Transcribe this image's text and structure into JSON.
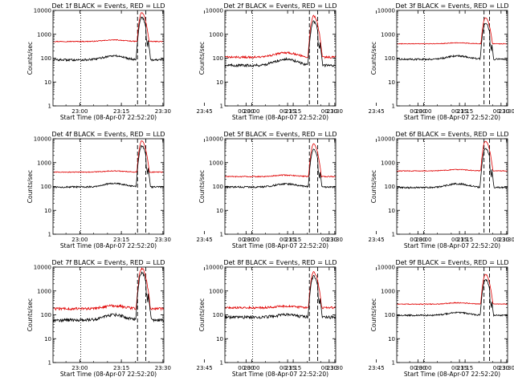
{
  "chart_data": [
    {
      "type": "line",
      "title": "Det 1f  BLACK = Events, RED = LLD",
      "xlabel": "Start Time (08-Apr-07 22:52:20)",
      "ylabel": "Counts/sec",
      "x_ticks": [
        "23:00",
        "23:15",
        "23:30",
        "23:45",
        "00:00",
        "00:15",
        "00:30"
      ],
      "x_range_min": [
        -2,
        38
      ],
      "y_log": true,
      "ylim": [
        1,
        10000
      ],
      "y_ticks": [
        "1",
        "10",
        "100",
        "1000",
        "10000"
      ],
      "dotted_line_min": 8,
      "dashed_lines_min": [
        28.5,
        31.5
      ],
      "series": [
        {
          "color": "#e00000",
          "baseline": 500,
          "hump": 80,
          "peak": 8000,
          "noise": 0.04
        },
        {
          "color": "#000000",
          "baseline": 85,
          "hump": 40,
          "peak": 5000,
          "noise": 0.1
        }
      ]
    },
    {
      "type": "line",
      "title": "Det 2f  BLACK = Events, RED = LLD",
      "xlabel": "Start Time (08-Apr-07 22:52:20)",
      "ylabel": "Counts/sec",
      "x_ticks": [
        "23:00",
        "23:15",
        "23:30",
        "23:45",
        "00:00",
        "00:15",
        "00:30"
      ],
      "x_range_min": [
        -2,
        38
      ],
      "y_log": true,
      "ylim": [
        1,
        10000
      ],
      "y_ticks": [
        "1",
        "10",
        "100",
        "1000",
        "10000"
      ],
      "dotted_line_min": 8,
      "dashed_lines_min": [
        28.5,
        31.5
      ],
      "series": [
        {
          "color": "#e00000",
          "baseline": 110,
          "hump": 60,
          "peak": 6000,
          "noise": 0.1
        },
        {
          "color": "#000000",
          "baseline": 50,
          "hump": 40,
          "peak": 3500,
          "noise": 0.12
        }
      ]
    },
    {
      "type": "line",
      "title": "Det 3f  BLACK = Events, RED = LLD",
      "xlabel": "Start Time (08-Apr-07 22:52:20)",
      "ylabel": "Counts/sec",
      "x_ticks": [
        "23:00",
        "23:15",
        "23:30",
        "23:45",
        "00:00",
        "00:15",
        "00:30"
      ],
      "x_range_min": [
        -2,
        38
      ],
      "y_log": true,
      "ylim": [
        1,
        10000
      ],
      "y_ticks": [
        "1",
        "10",
        "100",
        "1000",
        "10000"
      ],
      "dotted_line_min": 8,
      "dashed_lines_min": [
        29.5,
        31.5
      ],
      "series": [
        {
          "color": "#e00000",
          "baseline": 400,
          "hump": 40,
          "peak": 5000,
          "noise": 0.03
        },
        {
          "color": "#000000",
          "baseline": 90,
          "hump": 35,
          "peak": 3000,
          "noise": 0.08
        }
      ]
    },
    {
      "type": "line",
      "title": "Det 4f  BLACK = Events, RED = LLD",
      "xlabel": "Start Time (08-Apr-07 22:52:20)",
      "ylabel": "Counts/sec",
      "x_ticks": [
        "23:00",
        "23:15",
        "23:30",
        "23:45",
        "00:00",
        "00:15",
        "00:30"
      ],
      "x_range_min": [
        -2,
        38
      ],
      "y_log": true,
      "ylim": [
        1,
        10000
      ],
      "y_ticks": [
        "1",
        "10",
        "100",
        "1000",
        "10000"
      ],
      "dotted_line_min": 8,
      "dashed_lines_min": [
        28.5,
        31.5
      ],
      "series": [
        {
          "color": "#e00000",
          "baseline": 400,
          "hump": 50,
          "peak": 8000,
          "noise": 0.04
        },
        {
          "color": "#000000",
          "baseline": 95,
          "hump": 40,
          "peak": 5000,
          "noise": 0.08
        }
      ]
    },
    {
      "type": "line",
      "title": "Det 5f  BLACK = Events, RED = LLD",
      "xlabel": "Start Time (08-Apr-07 22:52:20)",
      "ylabel": "Counts/sec",
      "x_ticks": [
        "23:00",
        "23:15",
        "23:30",
        "23:45",
        "00:00",
        "00:15",
        "00:30"
      ],
      "x_range_min": [
        -2,
        38
      ],
      "y_log": true,
      "ylim": [
        1,
        10000
      ],
      "y_ticks": [
        "1",
        "10",
        "100",
        "1000",
        "10000"
      ],
      "dotted_line_min": 8,
      "dashed_lines_min": [
        28.5,
        31.5
      ],
      "series": [
        {
          "color": "#e00000",
          "baseline": 260,
          "hump": 40,
          "peak": 6000,
          "noise": 0.05
        },
        {
          "color": "#000000",
          "baseline": 95,
          "hump": 35,
          "peak": 3500,
          "noise": 0.08
        }
      ]
    },
    {
      "type": "line",
      "title": "Det 6f  BLACK = Events, RED = LLD",
      "xlabel": "Start Time (08-Apr-07 22:52:20)",
      "ylabel": "Counts/sec",
      "x_ticks": [
        "23:00",
        "23:15",
        "23:30",
        "23:45",
        "00:00",
        "00:15",
        "00:30"
      ],
      "x_range_min": [
        -2,
        38
      ],
      "y_log": true,
      "ylim": [
        1,
        10000
      ],
      "y_ticks": [
        "1",
        "10",
        "100",
        "1000",
        "10000"
      ],
      "dotted_line_min": 8,
      "dashed_lines_min": [
        29.5,
        31.5
      ],
      "series": [
        {
          "color": "#e00000",
          "baseline": 450,
          "hump": 60,
          "peak": 8000,
          "noise": 0.04
        },
        {
          "color": "#000000",
          "baseline": 90,
          "hump": 40,
          "peak": 4000,
          "noise": 0.08
        }
      ]
    },
    {
      "type": "line",
      "title": "Det 7f  BLACK = Events, RED = LLD",
      "xlabel": "Start Time (08-Apr-07 22:52:20)",
      "ylabel": "Counts/sec",
      "x_ticks": [
        "23:00",
        "23:15",
        "23:30",
        "23:45",
        "00:00",
        "00:15",
        "00:30"
      ],
      "x_range_min": [
        -2,
        38
      ],
      "y_log": true,
      "ylim": [
        1,
        10000
      ],
      "y_ticks": [
        "1",
        "10",
        "100",
        "1000",
        "10000"
      ],
      "dotted_line_min": 8,
      "dashed_lines_min": [
        28.5,
        31.5
      ],
      "series": [
        {
          "color": "#e00000",
          "baseline": 180,
          "hump": 60,
          "peak": 9000,
          "noise": 0.12
        },
        {
          "color": "#000000",
          "baseline": 60,
          "hump": 40,
          "peak": 6000,
          "noise": 0.14
        }
      ]
    },
    {
      "type": "line",
      "title": "Det 8f  BLACK = Events, RED = LLD",
      "xlabel": "Start Time (08-Apr-07 22:52:20)",
      "ylabel": "Counts/sec",
      "x_ticks": [
        "23:00",
        "23:15",
        "23:30",
        "23:45",
        "00:00",
        "00:15",
        "00:30"
      ],
      "x_range_min": [
        -2,
        38
      ],
      "y_log": true,
      "ylim": [
        1,
        10000
      ],
      "y_ticks": [
        "1",
        "10",
        "100",
        "1000",
        "10000"
      ],
      "dotted_line_min": 8,
      "dashed_lines_min": [
        28.5,
        31.5
      ],
      "series": [
        {
          "color": "#e00000",
          "baseline": 200,
          "hump": 30,
          "peak": 6000,
          "noise": 0.1
        },
        {
          "color": "#000000",
          "baseline": 80,
          "hump": 20,
          "peak": 4000,
          "noise": 0.14
        }
      ]
    },
    {
      "type": "line",
      "title": "Det 9f  BLACK = Events, RED = LLD",
      "xlabel": "Start Time (08-Apr-07 22:52:20)",
      "ylabel": "Counts/sec",
      "x_ticks": [
        "23:00",
        "23:15",
        "23:30",
        "23:45",
        "00:00",
        "00:15",
        "00:30"
      ],
      "x_range_min": [
        -2,
        38
      ],
      "y_log": true,
      "ylim": [
        1,
        10000
      ],
      "y_ticks": [
        "1",
        "10",
        "100",
        "1000",
        "10000"
      ],
      "dotted_line_min": 8,
      "dashed_lines_min": [
        29.5,
        31.5
      ],
      "series": [
        {
          "color": "#e00000",
          "baseline": 280,
          "hump": 40,
          "peak": 5000,
          "noise": 0.04
        },
        {
          "color": "#000000",
          "baseline": 95,
          "hump": 30,
          "peak": 3000,
          "noise": 0.07
        }
      ]
    }
  ]
}
